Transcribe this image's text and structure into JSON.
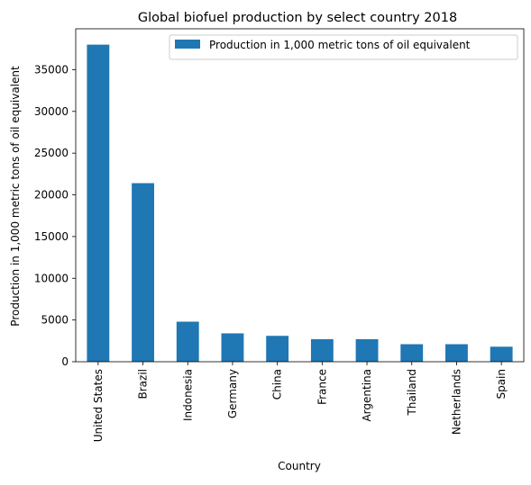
{
  "chart_data": {
    "type": "bar",
    "title": "Global biofuel production by select country 2018",
    "xlabel": "Country",
    "ylabel": "Production in 1,000 metric tons of oil equivalent",
    "categories": [
      "United States",
      "Brazil",
      "Indonesia",
      "Germany",
      "China",
      "France",
      "Argentina",
      "Thailand",
      "Netherlands",
      "Spain"
    ],
    "series": [
      {
        "name": "Production in 1,000 metric tons of oil equivalent",
        "values": [
          38000,
          21400,
          4800,
          3400,
          3100,
          2700,
          2700,
          2100,
          2100,
          1800
        ],
        "color": "#1f77b4"
      }
    ],
    "ylim": [
      0,
      39900
    ],
    "yticks": [
      0,
      5000,
      10000,
      15000,
      20000,
      25000,
      30000,
      35000
    ],
    "ytick_labels": [
      "0",
      "5000",
      "10000",
      "15000",
      "20000",
      "25000",
      "30000",
      "35000"
    ],
    "grid": false,
    "legend_position": "top-right"
  }
}
